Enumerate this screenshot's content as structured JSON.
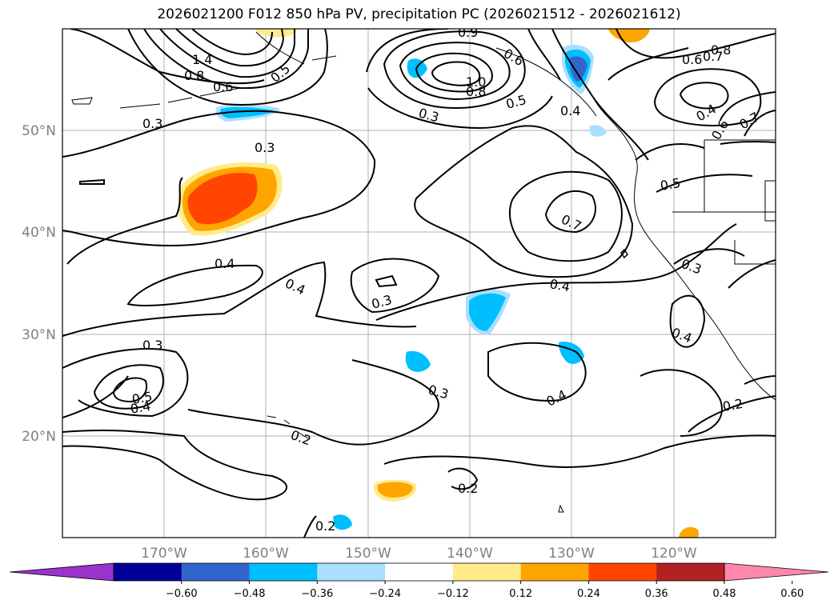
{
  "title": "2026021200 F012 850 hPa PV, precipitation PC (2026021512 - 2026021612)",
  "map": {
    "lat_labels": [
      "50°N",
      "40°N",
      "30°N",
      "20°N"
    ],
    "lon_labels": [
      "170°W",
      "160°W",
      "150°W",
      "140°W",
      "130°W",
      "120°W"
    ]
  },
  "contour_labels": [
    "0.3",
    "0.3",
    "0.4",
    "0.4",
    "0.3",
    "0.3",
    "0.5",
    "0.4",
    "0.3",
    "0.2",
    "0.2",
    "0.2",
    "0.3",
    "0.4",
    "0.4",
    "0.7",
    "0.5",
    "0.3",
    "0.4",
    "0.2",
    "0.8",
    "1.0",
    "0.5",
    "0.4",
    "0.6",
    "0.7",
    "0.8",
    "0.4",
    "0.6",
    "0.7",
    "1.4",
    "0.8",
    "0.6",
    "0.5",
    "0.6",
    "0.9"
  ],
  "colorbar": {
    "colors": [
      "#9933cc",
      "#000099",
      "#3366cc",
      "#00bfff",
      "#aadfff",
      "#ffffff",
      "#ffeb8a",
      "#ffa500",
      "#ff4500",
      "#b22222",
      "#ff88aa"
    ],
    "ticks": [
      "−0.60",
      "−0.48",
      "−0.36",
      "−0.24",
      "−0.12",
      "0.12",
      "0.24",
      "0.36",
      "0.48",
      "0.60"
    ]
  }
}
